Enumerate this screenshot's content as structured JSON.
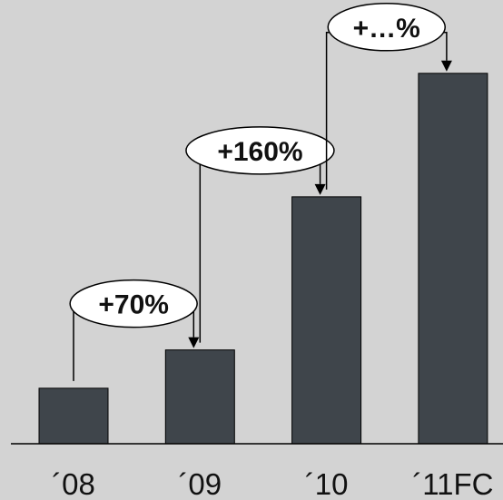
{
  "chart_data": {
    "type": "bar",
    "categories": [
      "´08",
      "´09",
      "´10",
      "´11FC"
    ],
    "values": [
      58,
      98,
      258,
      387
    ],
    "ylim": [
      0,
      420
    ],
    "title": "",
    "xlabel": "",
    "ylabel": "",
    "bar_color": "#3f454b",
    "background_color": "#d3d3d3",
    "annotations": [
      {
        "from": 0,
        "to": 1,
        "label": "+70%"
      },
      {
        "from": 1,
        "to": 2,
        "label": "+160%"
      },
      {
        "from": 2,
        "to": 3,
        "label": "+…%"
      }
    ]
  }
}
